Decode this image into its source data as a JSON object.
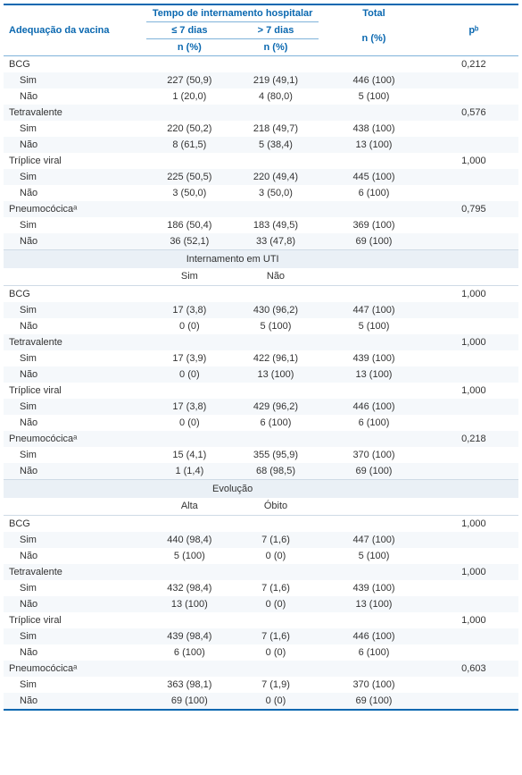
{
  "header": {
    "col1": "Adequação da vacina",
    "group_time": "Tempo de internamento hospitalar",
    "sub_le7": "≤ 7 dias",
    "sub_gt7": "> 7 dias",
    "npc": "n (%)",
    "total": "Total",
    "p": "pᵇ"
  },
  "section_uti": {
    "title": "Internamento em UTI",
    "sim": "Sim",
    "nao": "Não"
  },
  "section_evo": {
    "title": "Evolução",
    "alta": "Alta",
    "obito": "Óbito"
  },
  "labels": {
    "bcg": "BCG",
    "tetra": "Tetravalente",
    "triplice": "Tríplice viral",
    "pneumo": "Pneumocócicaᵃ",
    "sim": "Sim",
    "nao": "Não"
  },
  "time": {
    "bcg": {
      "p": "0,212",
      "sim": {
        "c2": "227 (50,9)",
        "c3": "219 (49,1)",
        "c4": "446 (100)"
      },
      "nao": {
        "c2": "1 (20,0)",
        "c3": "4 (80,0)",
        "c4": "5 (100)"
      }
    },
    "tetra": {
      "p": "0,576",
      "sim": {
        "c2": "220 (50,2)",
        "c3": "218 (49,7)",
        "c4": "438 (100)"
      },
      "nao": {
        "c2": "8 (61,5)",
        "c3": "5 (38,4)",
        "c4": "13 (100)"
      }
    },
    "triplice": {
      "p": "1,000",
      "sim": {
        "c2": "225 (50,5)",
        "c3": "220 (49,4)",
        "c4": "445 (100)"
      },
      "nao": {
        "c2": "3 (50,0)",
        "c3": "3 (50,0)",
        "c4": "6 (100)"
      }
    },
    "pneumo": {
      "p": "0,795",
      "sim": {
        "c2": "186 (50,4)",
        "c3": "183 (49,5)",
        "c4": "369 (100)"
      },
      "nao": {
        "c2": "36 (52,1)",
        "c3": "33 (47,8)",
        "c4": "69 (100)"
      }
    }
  },
  "uti": {
    "bcg": {
      "p": "1,000",
      "sim": {
        "c2": "17 (3,8)",
        "c3": "430 (96,2)",
        "c4": "447 (100)"
      },
      "nao": {
        "c2": "0 (0)",
        "c3": "5 (100)",
        "c4": "5 (100)"
      }
    },
    "tetra": {
      "p": "1,000",
      "sim": {
        "c2": "17 (3,9)",
        "c3": "422 (96,1)",
        "c4": "439 (100)"
      },
      "nao": {
        "c2": "0 (0)",
        "c3": "13 (100)",
        "c4": "13 (100)"
      }
    },
    "triplice": {
      "p": "1,000",
      "sim": {
        "c2": "17 (3,8)",
        "c3": "429 (96,2)",
        "c4": "446 (100)"
      },
      "nao": {
        "c2": "0 (0)",
        "c3": "6 (100)",
        "c4": "6 (100)"
      }
    },
    "pneumo": {
      "p": "0,218",
      "sim": {
        "c2": "15 (4,1)",
        "c3": "355 (95,9)",
        "c4": "370 (100)"
      },
      "nao": {
        "c2": "1 (1,4)",
        "c3": "68 (98,5)",
        "c4": "69 (100)"
      }
    }
  },
  "evo": {
    "bcg": {
      "p": "1,000",
      "sim": {
        "c2": "440 (98,4)",
        "c3": "7 (1,6)",
        "c4": "447 (100)"
      },
      "nao": {
        "c2": "5 (100)",
        "c3": "0 (0)",
        "c4": "5 (100)"
      }
    },
    "tetra": {
      "p": "1,000",
      "sim": {
        "c2": "432 (98,4)",
        "c3": "7 (1,6)",
        "c4": "439 (100)"
      },
      "nao": {
        "c2": "13 (100)",
        "c3": "0 (0)",
        "c4": "13 (100)"
      }
    },
    "triplice": {
      "p": "1,000",
      "sim": {
        "c2": "439 (98,4)",
        "c3": "7 (1,6)",
        "c4": "446 (100)"
      },
      "nao": {
        "c2": "6 (100)",
        "c3": "0 (0)",
        "c4": "6 (100)"
      }
    },
    "pneumo": {
      "p": "0,603",
      "sim": {
        "c2": "363 (98,1)",
        "c3": "7 (1,9)",
        "c4": "370 (100)"
      },
      "nao": {
        "c2": "69 (100)",
        "c3": "0 (0)",
        "c4": "69 (100)"
      }
    }
  }
}
